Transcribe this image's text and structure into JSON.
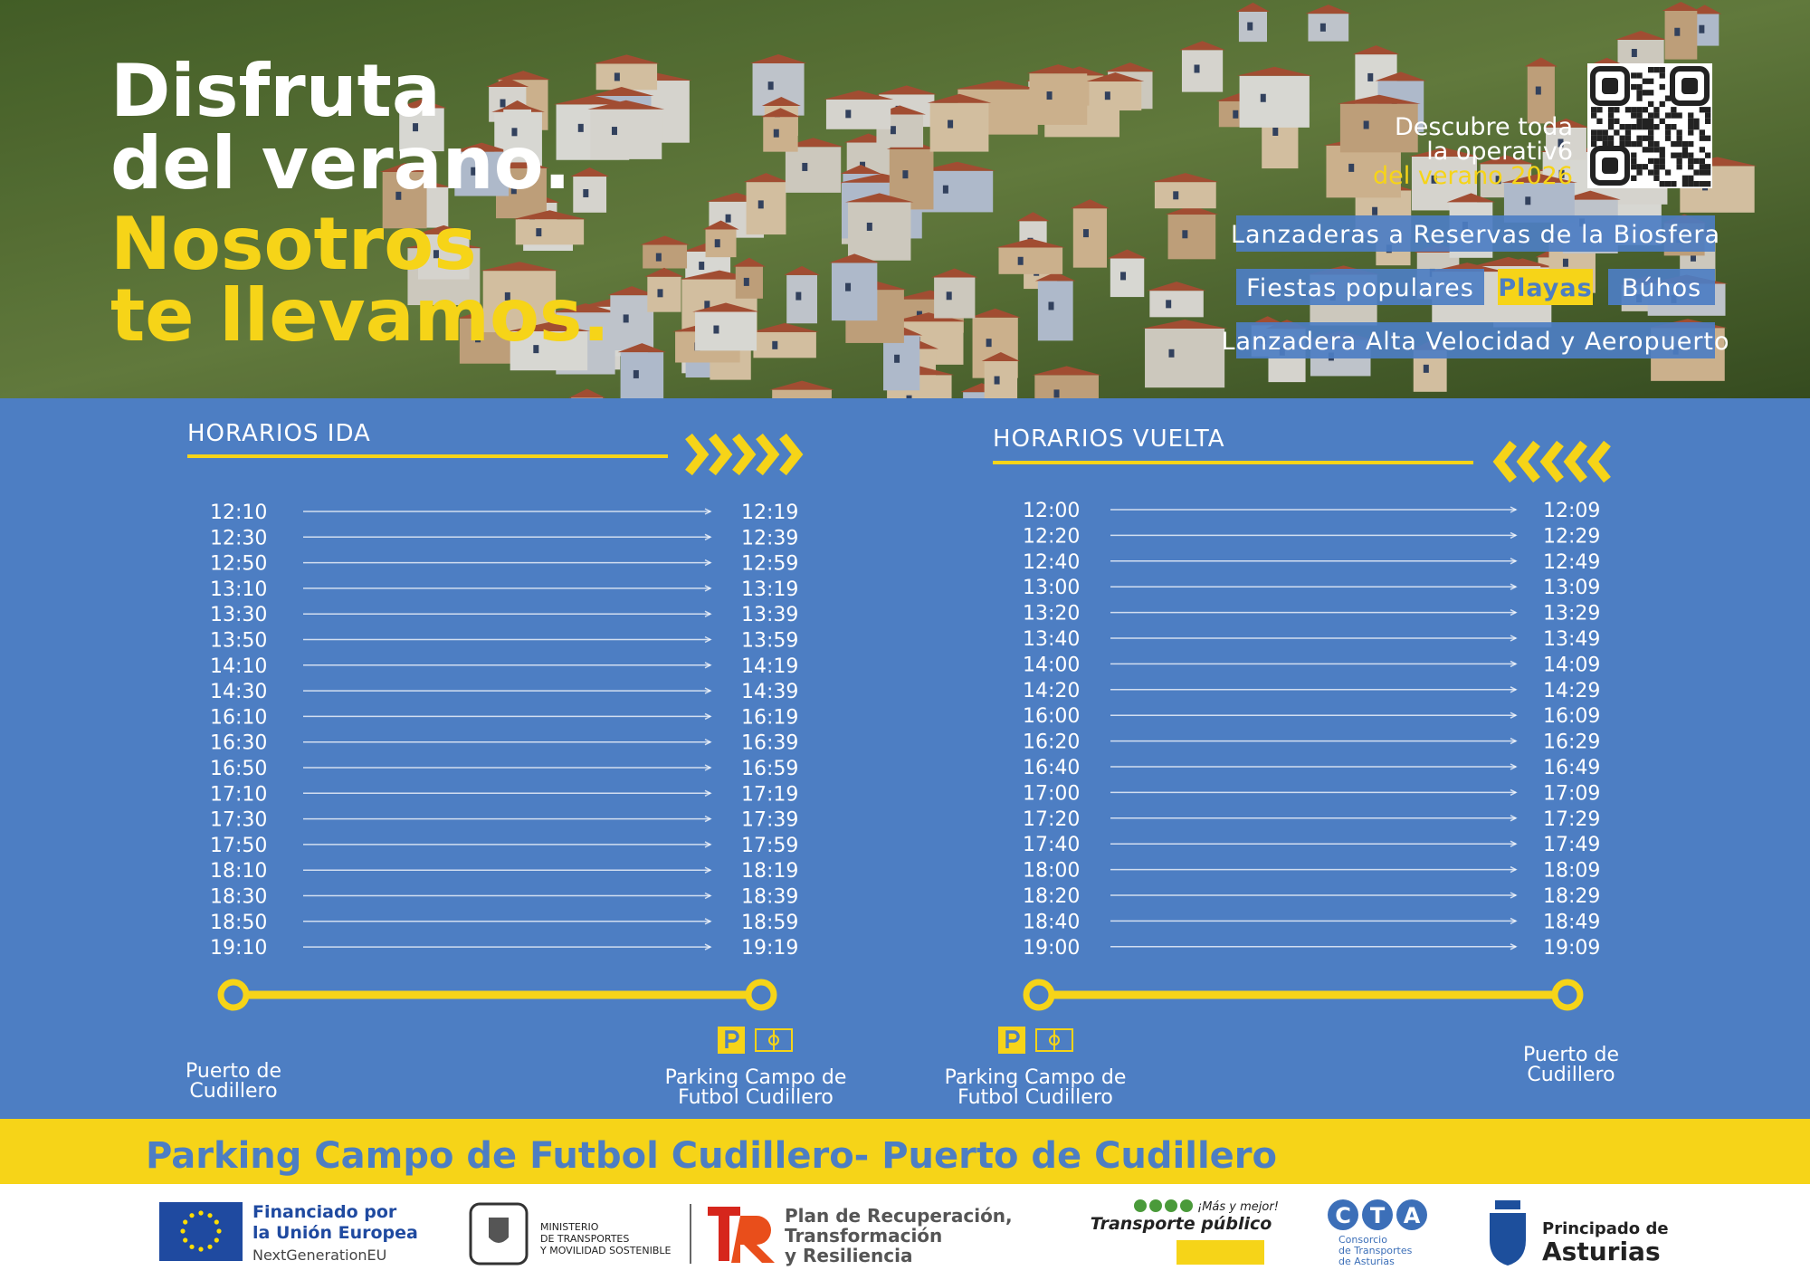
{
  "hero": {
    "title_lines": [
      "Disfruta",
      "del verano.",
      "Nosotros",
      "te llevamos."
    ],
    "qr_text": [
      "Descubre toda",
      "la operativ6",
      "del verano 2026"
    ],
    "tags": [
      [
        "Lanzaderas a Reservas de la Biosfera"
      ],
      [
        "Fiestas populares",
        "Playas",
        "Búhos"
      ],
      [
        "Lanzadera Alta Velocidad y Aeropuerto"
      ]
    ]
  },
  "ida": {
    "heading": "HORARIOS IDA",
    "rows": [
      [
        "12:10",
        "12:19"
      ],
      [
        "12:30",
        "12:39"
      ],
      [
        "12:50",
        "12:59"
      ],
      [
        "13:10",
        "13:19"
      ],
      [
        "13:30",
        "13:39"
      ],
      [
        "13:50",
        "13:59"
      ],
      [
        "14:10",
        "14:19"
      ],
      [
        "14:30",
        "14:39"
      ],
      [
        "16:10",
        "16:19"
      ],
      [
        "16:30",
        "16:39"
      ],
      [
        "16:50",
        "16:59"
      ],
      [
        "17:10",
        "17:19"
      ],
      [
        "17:30",
        "17:39"
      ],
      [
        "17:50",
        "17:59"
      ],
      [
        "18:10",
        "18:19"
      ],
      [
        "18:30",
        "18:39"
      ],
      [
        "18:50",
        "18:59"
      ],
      [
        "19:10",
        "19:19"
      ]
    ],
    "from": [
      "Puerto de",
      "Cudillero"
    ],
    "to": [
      "Parking Campo de",
      "Futbol Cudillero"
    ]
  },
  "vuelta": {
    "heading": "HORARIOS VUELTA",
    "rows": [
      [
        "12:00",
        "12:09"
      ],
      [
        "12:20",
        "12:29"
      ],
      [
        "12:40",
        "12:49"
      ],
      [
        "13:00",
        "13:09"
      ],
      [
        "13:20",
        "13:29"
      ],
      [
        "13:40",
        "13:49"
      ],
      [
        "14:00",
        "14:09"
      ],
      [
        "14:20",
        "14:29"
      ],
      [
        "16:00",
        "16:09"
      ],
      [
        "16:20",
        "16:29"
      ],
      [
        "16:40",
        "16:49"
      ],
      [
        "17:00",
        "17:09"
      ],
      [
        "17:20",
        "17:29"
      ],
      [
        "17:40",
        "17:49"
      ],
      [
        "18:00",
        "18:09"
      ],
      [
        "18:20",
        "18:29"
      ],
      [
        "18:40",
        "18:49"
      ],
      [
        "19:00",
        "19:09"
      ]
    ],
    "from": [
      "Parking Campo de",
      "Futbol Cudillero"
    ],
    "to": [
      "Puerto de",
      "Cudillero"
    ]
  },
  "route": "Parking Campo de Futbol Cudillero- Puerto de Cudillero",
  "footer": {
    "eu": [
      "Financiado por",
      "la Unión Europea",
      "NextGenerationEU"
    ],
    "ministry": [
      "MINISTERIO",
      "DE TRANSPORTES",
      "Y MOVILIDAD SOSTENIBLE"
    ],
    "plan": [
      "Plan de Recuperación,",
      "Transformación",
      "y Resiliencia"
    ],
    "transporte": [
      "¡Más y mejor!",
      "Transporte público"
    ],
    "cta": {
      "letters": [
        "C",
        "T",
        "A"
      ],
      "lines": [
        "Consorcio",
        "de Transportes",
        "de Asturias"
      ]
    },
    "asturias": [
      "Principado de",
      "Asturias"
    ]
  }
}
